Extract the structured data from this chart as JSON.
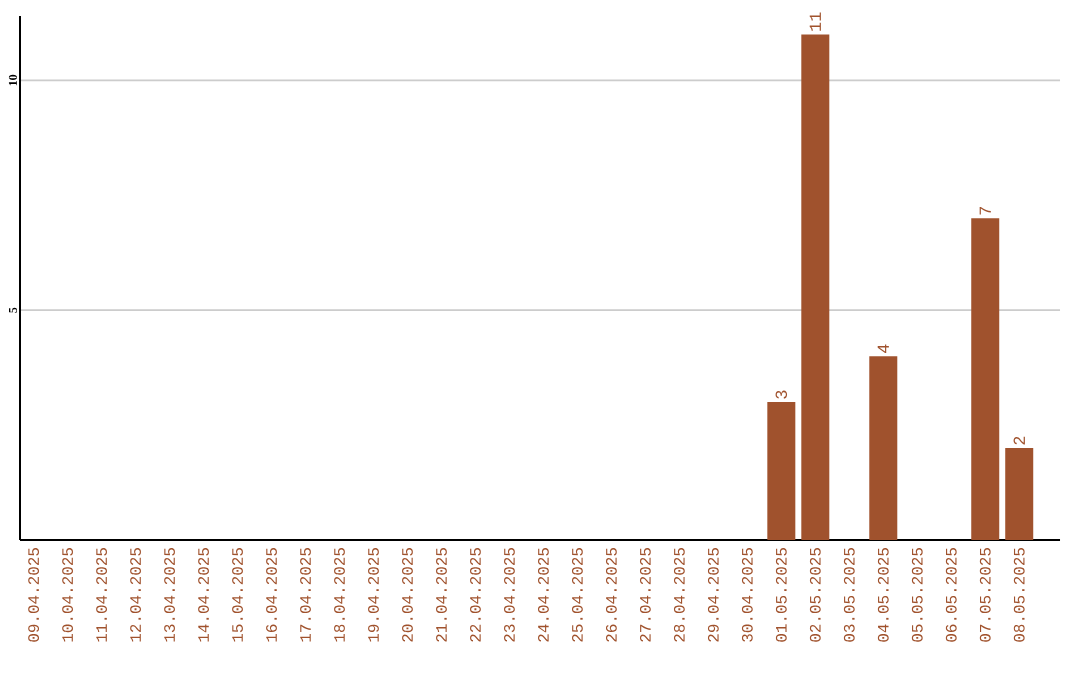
{
  "chart_data": {
    "type": "bar",
    "categories": [
      "09.04.2025",
      "10.04.2025",
      "11.04.2025",
      "12.04.2025",
      "13.04.2025",
      "14.04.2025",
      "15.04.2025",
      "16.04.2025",
      "17.04.2025",
      "18.04.2025",
      "19.04.2025",
      "20.04.2025",
      "21.04.2025",
      "22.04.2025",
      "23.04.2025",
      "24.04.2025",
      "25.04.2025",
      "26.04.2025",
      "27.04.2025",
      "28.04.2025",
      "29.04.2025",
      "30.04.2025",
      "01.05.2025",
      "02.05.2025",
      "03.05.2025",
      "04.05.2025",
      "05.05.2025",
      "06.05.2025",
      "07.05.2025",
      "08.05.2025"
    ],
    "values": [
      0,
      0,
      0,
      0,
      0,
      0,
      0,
      0,
      0,
      0,
      0,
      0,
      0,
      0,
      0,
      0,
      0,
      0,
      0,
      0,
      0,
      0,
      3,
      11,
      0,
      4,
      0,
      0,
      7,
      2
    ],
    "value_labels": [
      null,
      null,
      null,
      null,
      null,
      null,
      null,
      null,
      null,
      null,
      null,
      null,
      null,
      null,
      null,
      null,
      null,
      null,
      null,
      null,
      null,
      null,
      "3",
      "11",
      null,
      "4",
      null,
      null,
      "7",
      "2"
    ],
    "color": "#a0522d",
    "ylim": [
      0,
      11.4
    ],
    "yticks": [
      5,
      10
    ],
    "grid": "y"
  }
}
